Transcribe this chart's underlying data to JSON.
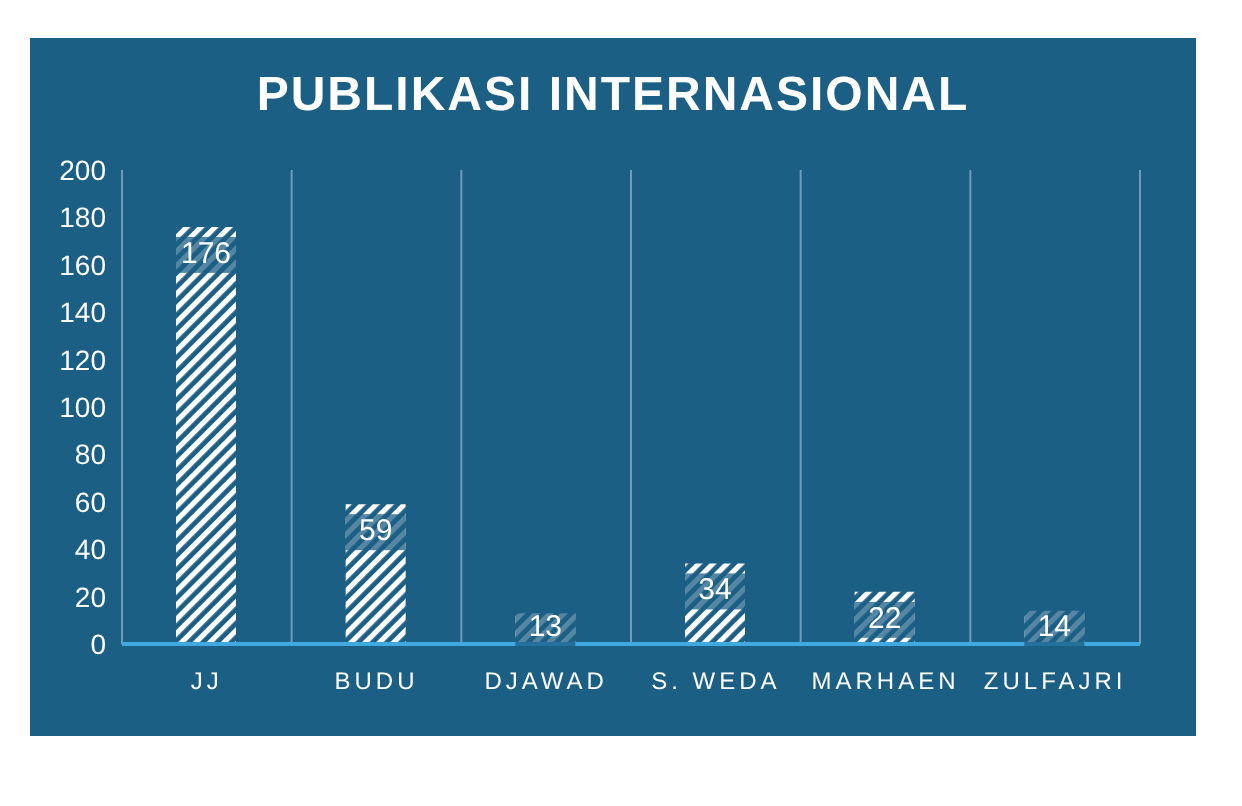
{
  "chart_data": {
    "type": "bar",
    "title": "PUBLIKASI INTERNASIONAL",
    "categories": [
      "JJ",
      "BUDU",
      "DJAWAD",
      "S. WEDA",
      "MARHAEN",
      "ZULFAJRI"
    ],
    "values": [
      176,
      59,
      13,
      34,
      22,
      14
    ],
    "color": "#ffffff",
    "ylim": [
      0,
      200
    ],
    "yticks": [
      0,
      20,
      40,
      60,
      80,
      100,
      120,
      140,
      160,
      180,
      200
    ],
    "grid": "x",
    "data_labels": true
  }
}
